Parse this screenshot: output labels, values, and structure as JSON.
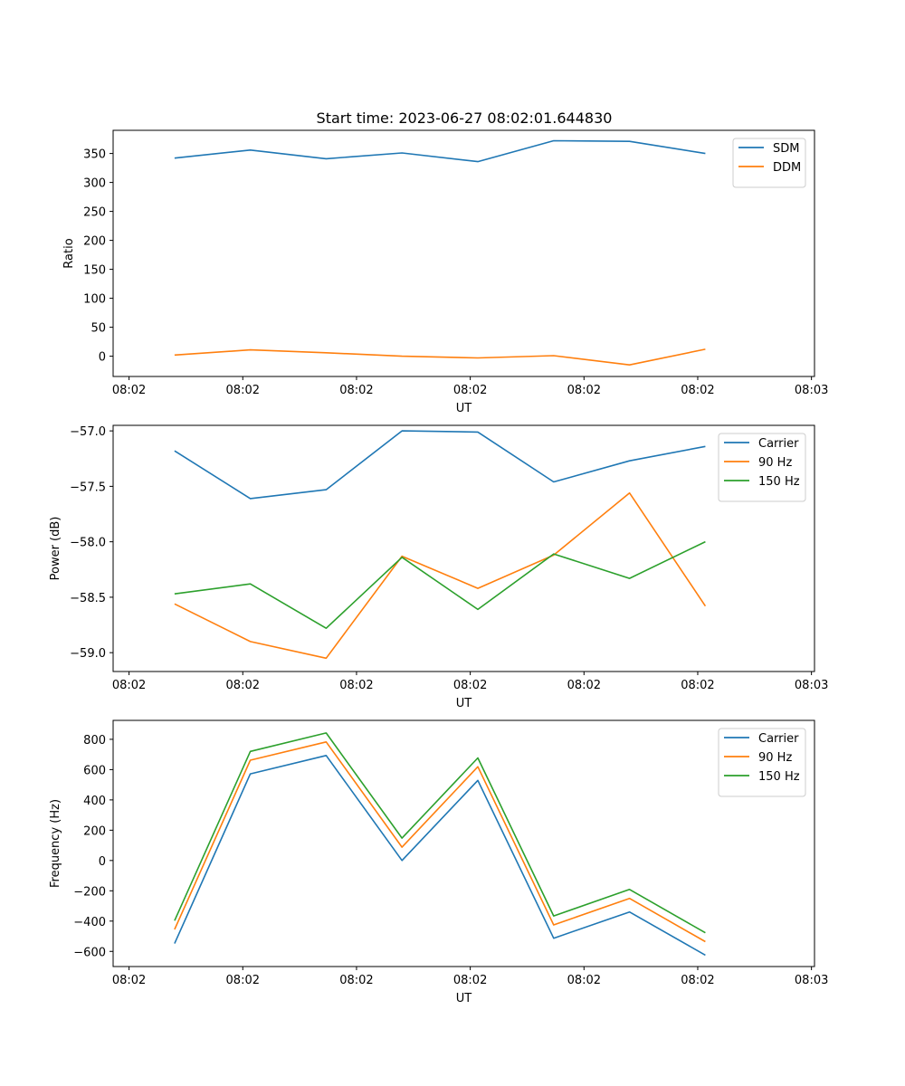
{
  "figure": {
    "title": "Start time: 2023-06-27 08:02:01.644830"
  },
  "chart_data": [
    {
      "type": "line",
      "xlabel": "UT",
      "ylabel": "Ratio",
      "x": [
        1,
        2,
        3,
        4,
        5,
        6,
        7,
        8
      ],
      "xlim": [
        0.19,
        9.44
      ],
      "xticks": [
        0.4,
        1.9,
        3.4,
        4.9,
        6.4,
        7.9,
        9.4
      ],
      "xtick_labels": [
        "08:02",
        "08:02",
        "08:02",
        "08:02",
        "08:02",
        "08:02",
        "08:03"
      ],
      "ylim": [
        -35,
        390
      ],
      "yticks": [
        0,
        50,
        100,
        150,
        200,
        250,
        300,
        350
      ],
      "legend_position": "top-right",
      "series": [
        {
          "name": "SDM",
          "color": "#1f77b4",
          "values": [
            342,
            356,
            341,
            351,
            336,
            372,
            371,
            350
          ]
        },
        {
          "name": "DDM",
          "color": "#ff7f0e",
          "values": [
            2,
            11,
            6,
            0,
            -3,
            1,
            -15,
            12
          ]
        }
      ]
    },
    {
      "type": "line",
      "xlabel": "UT",
      "ylabel": "Power (dB)",
      "x": [
        1,
        2,
        3,
        4,
        5,
        6,
        7,
        8
      ],
      "xlim": [
        0.19,
        9.44
      ],
      "xticks": [
        0.4,
        1.9,
        3.4,
        4.9,
        6.4,
        7.9,
        9.4
      ],
      "xtick_labels": [
        "08:02",
        "08:02",
        "08:02",
        "08:02",
        "08:02",
        "08:02",
        "08:03"
      ],
      "ylim": [
        -59.17,
        -56.95
      ],
      "yticks": [
        -59.0,
        -58.5,
        -58.0,
        -57.5,
        -57.0
      ],
      "ytick_labels": [
        "−59.0",
        "−58.5",
        "−58.0",
        "−57.5",
        "−57.0"
      ],
      "legend_position": "top-right",
      "series": [
        {
          "name": "Carrier",
          "color": "#1f77b4",
          "values": [
            -57.18,
            -57.61,
            -57.53,
            -57.0,
            -57.01,
            -57.46,
            -57.27,
            -57.14
          ]
        },
        {
          "name": "90 Hz",
          "color": "#ff7f0e",
          "values": [
            -58.56,
            -58.9,
            -59.05,
            -58.13,
            -58.42,
            -58.12,
            -57.56,
            -58.58
          ]
        },
        {
          "name": "150 Hz",
          "color": "#2ca02c",
          "values": [
            -58.47,
            -58.38,
            -58.78,
            -58.14,
            -58.61,
            -58.11,
            -58.33,
            -58.0
          ]
        }
      ]
    },
    {
      "type": "line",
      "xlabel": "UT",
      "ylabel": "Frequency (Hz)",
      "x": [
        1,
        2,
        3,
        4,
        5,
        6,
        7,
        8
      ],
      "xlim": [
        0.19,
        9.44
      ],
      "xticks": [
        0.4,
        1.9,
        3.4,
        4.9,
        6.4,
        7.9,
        9.4
      ],
      "xtick_labels": [
        "08:02",
        "08:02",
        "08:02",
        "08:02",
        "08:02",
        "08:02",
        "08:03"
      ],
      "ylim": [
        -700,
        925
      ],
      "yticks": [
        -600,
        -400,
        -200,
        0,
        200,
        400,
        600,
        800
      ],
      "ytick_labels": [
        "−600",
        "−400",
        "−200",
        "0",
        "200",
        "400",
        "600",
        "800"
      ],
      "legend_position": "top-right",
      "series": [
        {
          "name": "Carrier",
          "color": "#1f77b4",
          "values": [
            -548,
            572,
            693,
            0,
            529,
            -513,
            -340,
            -625
          ]
        },
        {
          "name": "90 Hz",
          "color": "#ff7f0e",
          "values": [
            -455,
            662,
            783,
            88,
            619,
            -425,
            -250,
            -536
          ]
        },
        {
          "name": "150 Hz",
          "color": "#2ca02c",
          "values": [
            -397,
            720,
            842,
            148,
            677,
            -366,
            -191,
            -477
          ]
        }
      ]
    }
  ]
}
